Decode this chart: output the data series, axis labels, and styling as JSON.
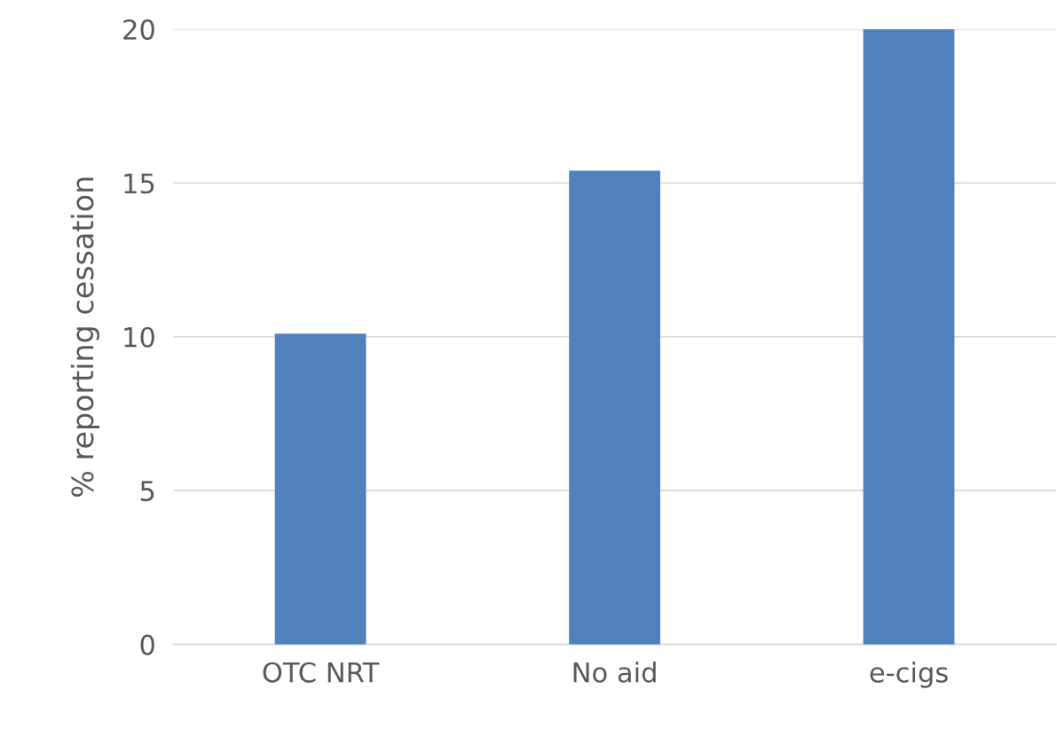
{
  "chart_data": {
    "type": "bar",
    "ylabel": "% reporting cessation",
    "categories": [
      "OTC NRT",
      "No aid",
      "e-cigs"
    ],
    "values": [
      10.1,
      15.4,
      20.0
    ],
    "color": "#4f81bd",
    "ylim": [
      0,
      20
    ],
    "yticks": [
      0,
      5,
      10,
      15,
      20
    ],
    "grid": "y",
    "legend": false
  }
}
